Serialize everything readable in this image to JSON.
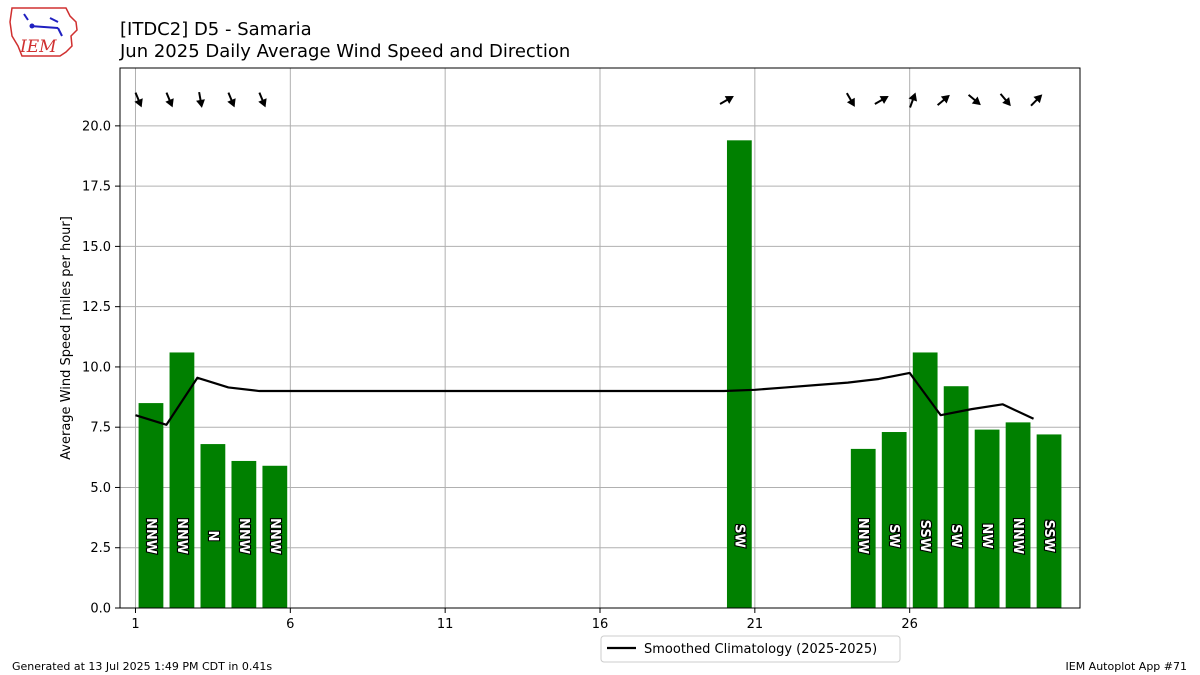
{
  "header": {
    "title_line1": "[ITDC2] D5 - Samaria",
    "title_line2": "Jun 2025 Daily Average Wind Speed and Direction",
    "logo_text": "IEM"
  },
  "footer": {
    "left": "Generated at 13 Jul 2025 1:49 PM CDT in 0.41s",
    "right": "IEM Autoplot App #71"
  },
  "colors": {
    "bar": "#008000",
    "climo_line": "#000000",
    "grid": "#b0b0b0"
  },
  "chart_data": {
    "type": "bar",
    "ylabel": "Average Wind Speed [miles per hour]",
    "xlim": [
      0.5,
      31.5
    ],
    "ylim": [
      0,
      22.4
    ],
    "x_ticks": [
      1,
      6,
      11,
      16,
      21,
      26
    ],
    "y_ticks": [
      "0.0",
      "2.5",
      "5.0",
      "7.5",
      "10.0",
      "12.5",
      "15.0",
      "17.5",
      "20.0"
    ],
    "grid": true,
    "bars": [
      {
        "day": 1,
        "value": 8.5,
        "dir": "NNW",
        "deg": 337.5
      },
      {
        "day": 2,
        "value": 10.6,
        "dir": "NNW",
        "deg": 337.5
      },
      {
        "day": 3,
        "value": 6.8,
        "dir": "N",
        "deg": 350
      },
      {
        "day": 4,
        "value": 6.1,
        "dir": "NNW",
        "deg": 337.5
      },
      {
        "day": 5,
        "value": 5.9,
        "dir": "NNW",
        "deg": 337.5
      },
      {
        "day": 20,
        "value": 19.4,
        "dir": "SW",
        "deg": 240
      },
      {
        "day": 24,
        "value": 6.6,
        "dir": "NNW",
        "deg": 330
      },
      {
        "day": 25,
        "value": 7.3,
        "dir": "SW",
        "deg": 240
      },
      {
        "day": 26,
        "value": 10.6,
        "dir": "SSW",
        "deg": 200
      },
      {
        "day": 27,
        "value": 9.2,
        "dir": "SW",
        "deg": 230
      },
      {
        "day": 28,
        "value": 7.4,
        "dir": "NW",
        "deg": 310
      },
      {
        "day": 29,
        "value": 7.7,
        "dir": "NNW",
        "deg": 320
      },
      {
        "day": 30,
        "value": 7.2,
        "dir": "SSW",
        "deg": 225
      }
    ],
    "climatology": {
      "name": "Smoothed Climatology (2025-2025)",
      "x": [
        1,
        2,
        3,
        4,
        5,
        6,
        20,
        21,
        22,
        23,
        24,
        25,
        26,
        27,
        28,
        29,
        30
      ],
      "y": [
        8.0,
        7.6,
        9.55,
        9.15,
        9.0,
        9.0,
        9.0,
        9.05,
        9.15,
        9.25,
        9.35,
        9.5,
        9.75,
        8.0,
        8.25,
        8.45,
        7.85
      ]
    },
    "legend_position": "bottom-center"
  }
}
